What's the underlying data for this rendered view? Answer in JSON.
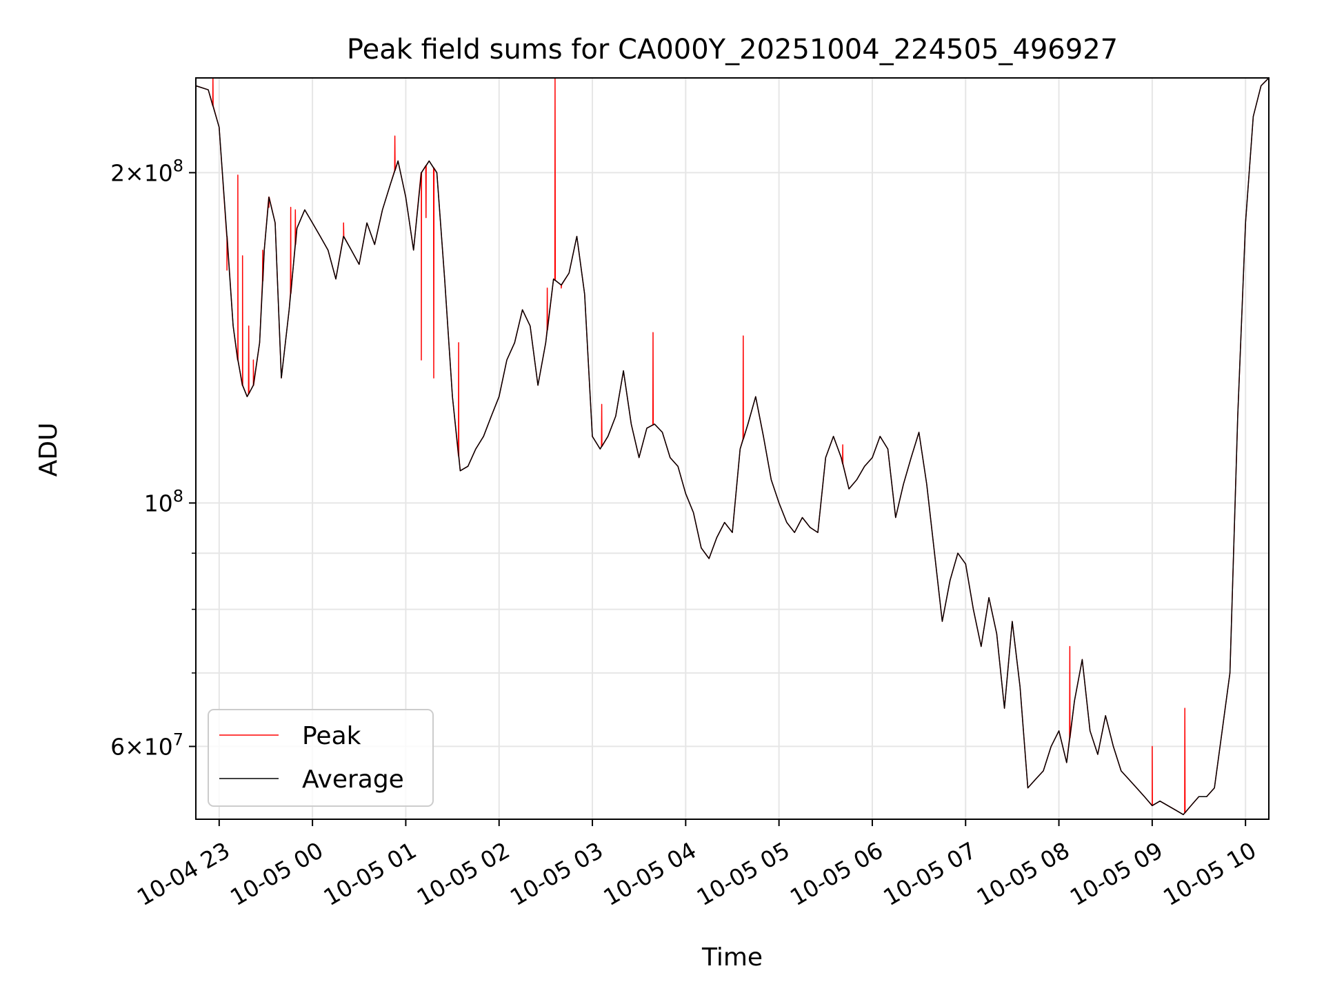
{
  "chart_data": {
    "type": "line",
    "title": "Peak field sums for CA000Y_20251004_224505_496927",
    "xlabel": "Time",
    "ylabel": "ADU",
    "yscale": "log",
    "ylim": [
      51500000,
      244000000
    ],
    "xlim": [
      "2025-10-04 22:45",
      "2025-10-05 10:15"
    ],
    "grid": true,
    "legend_position": "lower-left",
    "x_ticks": [
      "2025-10-04 23:00",
      "2025-10-05 00:00",
      "2025-10-05 01:00",
      "2025-10-05 02:00",
      "2025-10-05 03:00",
      "2025-10-05 04:00",
      "2025-10-05 05:00",
      "2025-10-05 06:00",
      "2025-10-05 07:00",
      "2025-10-05 08:00",
      "2025-10-05 09:00",
      "2025-10-05 10:00"
    ],
    "x_tick_labels": [
      "10-04 23",
      "10-05 00",
      "10-05 01",
      "10-05 02",
      "10-05 03",
      "10-05 04",
      "10-05 05",
      "10-05 06",
      "10-05 07",
      "10-05 08",
      "10-05 09",
      "10-05 10"
    ],
    "y_major_ticks": [
      {
        "value": 60000000,
        "mantissa": "6",
        "exponent": "7"
      },
      {
        "value": 100000000,
        "mantissa": "",
        "exponent": "8"
      },
      {
        "value": 200000000,
        "mantissa": "2",
        "exponent": "8"
      }
    ],
    "y_minor_ticks": [
      70000000,
      80000000,
      90000000
    ],
    "times_baseline": "2025-10-04 22:45",
    "times_minutes": [
      0,
      8,
      15,
      20,
      24,
      27,
      30,
      33,
      37,
      41,
      44,
      47,
      51,
      55,
      60,
      65,
      70,
      75,
      80,
      85,
      90,
      95,
      100,
      105,
      110,
      115,
      120,
      125,
      130,
      135,
      140,
      145,
      150,
      155,
      160,
      165,
      170,
      175,
      180,
      185,
      190,
      195,
      200,
      205,
      210,
      215,
      220,
      225,
      230,
      235,
      240,
      245,
      250,
      255,
      260,
      265,
      270,
      275,
      280,
      285,
      290,
      295,
      300,
      305,
      310,
      315,
      320,
      325,
      330,
      335,
      340,
      345,
      350,
      355,
      360,
      365,
      370,
      375,
      380,
      385,
      390,
      395,
      400,
      405,
      410,
      415,
      420,
      425,
      430,
      435,
      440,
      445,
      450,
      455,
      460,
      465,
      470,
      475,
      480,
      485,
      490,
      495,
      500,
      505,
      510,
      515,
      520,
      525,
      530,
      535,
      540,
      545,
      550,
      555,
      560,
      565,
      570,
      575,
      580,
      585,
      590,
      595,
      600,
      605,
      610,
      615,
      620,
      625,
      630,
      635,
      640,
      645,
      650,
      655,
      660,
      665,
      670,
      675,
      680,
      685,
      690
    ],
    "series": [
      {
        "name": "Average",
        "color": "#000000",
        "values": [
          240000000,
          238000000,
          220000000,
          175000000,
          145000000,
          135000000,
          128000000,
          125000000,
          128000000,
          140000000,
          170000000,
          190000000,
          180000000,
          130000000,
          150000000,
          178000000,
          185000000,
          180000000,
          175000000,
          170000000,
          160000000,
          175000000,
          170000000,
          165000000,
          180000000,
          172000000,
          185000000,
          195000000,
          205000000,
          190000000,
          170000000,
          200000000,
          205000000,
          200000000,
          160000000,
          125000000,
          107000000,
          108000000,
          112000000,
          115000000,
          120000000,
          125000000,
          135000000,
          140000000,
          150000000,
          145000000,
          128000000,
          140000000,
          160000000,
          158000000,
          162000000,
          175000000,
          155000000,
          115000000,
          112000000,
          115000000,
          120000000,
          132000000,
          118000000,
          110000000,
          117000000,
          118000000,
          116000000,
          110000000,
          108000000,
          102000000,
          98000000,
          91000000,
          89000000,
          93000000,
          96000000,
          94000000,
          112000000,
          118000000,
          125000000,
          115000000,
          105000000,
          100000000,
          96000000,
          94000000,
          97000000,
          95000000,
          94000000,
          110000000,
          115000000,
          110000000,
          103000000,
          105000000,
          108000000,
          110000000,
          115000000,
          112000000,
          97000000,
          104000000,
          110000000,
          116000000,
          104000000,
          90000000,
          78000000,
          85000000,
          90000000,
          88000000,
          80000000,
          74000000,
          82000000,
          76000000,
          65000000,
          78000000,
          68000000,
          55000000,
          56000000,
          57000000,
          60000000,
          62000000,
          58000000,
          66000000,
          72000000,
          62000000,
          59000000,
          64000000,
          60000000,
          57000000,
          56000000,
          55000000,
          54000000,
          53000000,
          53500000,
          53000000,
          52500000,
          52000000,
          53000000,
          54000000,
          54000000,
          55000000,
          62000000,
          70000000,
          120000000,
          180000000,
          225000000,
          240000000,
          244000000
        ]
      },
      {
        "name": "Peak",
        "color": "#ff0000",
        "spikes": [
          {
            "minutes": 11,
            "value": 244000000
          },
          {
            "minutes": 20,
            "value": 163000000
          },
          {
            "minutes": 27,
            "value": 199000000
          },
          {
            "minutes": 30,
            "value": 168000000
          },
          {
            "minutes": 34,
            "value": 145000000
          },
          {
            "minutes": 37,
            "value": 135000000
          },
          {
            "minutes": 43,
            "value": 170000000
          },
          {
            "minutes": 47,
            "value": 186000000
          },
          {
            "minutes": 61,
            "value": 186000000
          },
          {
            "minutes": 64,
            "value": 185000000
          },
          {
            "minutes": 95,
            "value": 180000000
          },
          {
            "minutes": 128,
            "value": 216000000
          },
          {
            "minutes": 145,
            "value": 135000000
          },
          {
            "minutes": 148,
            "value": 182000000
          },
          {
            "minutes": 153,
            "value": 130000000
          },
          {
            "minutes": 169,
            "value": 140000000
          },
          {
            "minutes": 226,
            "value": 157000000
          },
          {
            "minutes": 231,
            "value": 244000000
          },
          {
            "minutes": 235,
            "value": 157000000
          },
          {
            "minutes": 261,
            "value": 123000000
          },
          {
            "minutes": 294,
            "value": 143000000
          },
          {
            "minutes": 352,
            "value": 142000000
          },
          {
            "minutes": 416,
            "value": 113000000
          },
          {
            "minutes": 562,
            "value": 74000000
          },
          {
            "minutes": 615,
            "value": 60000000
          },
          {
            "minutes": 636,
            "value": 65000000
          }
        ]
      }
    ]
  }
}
